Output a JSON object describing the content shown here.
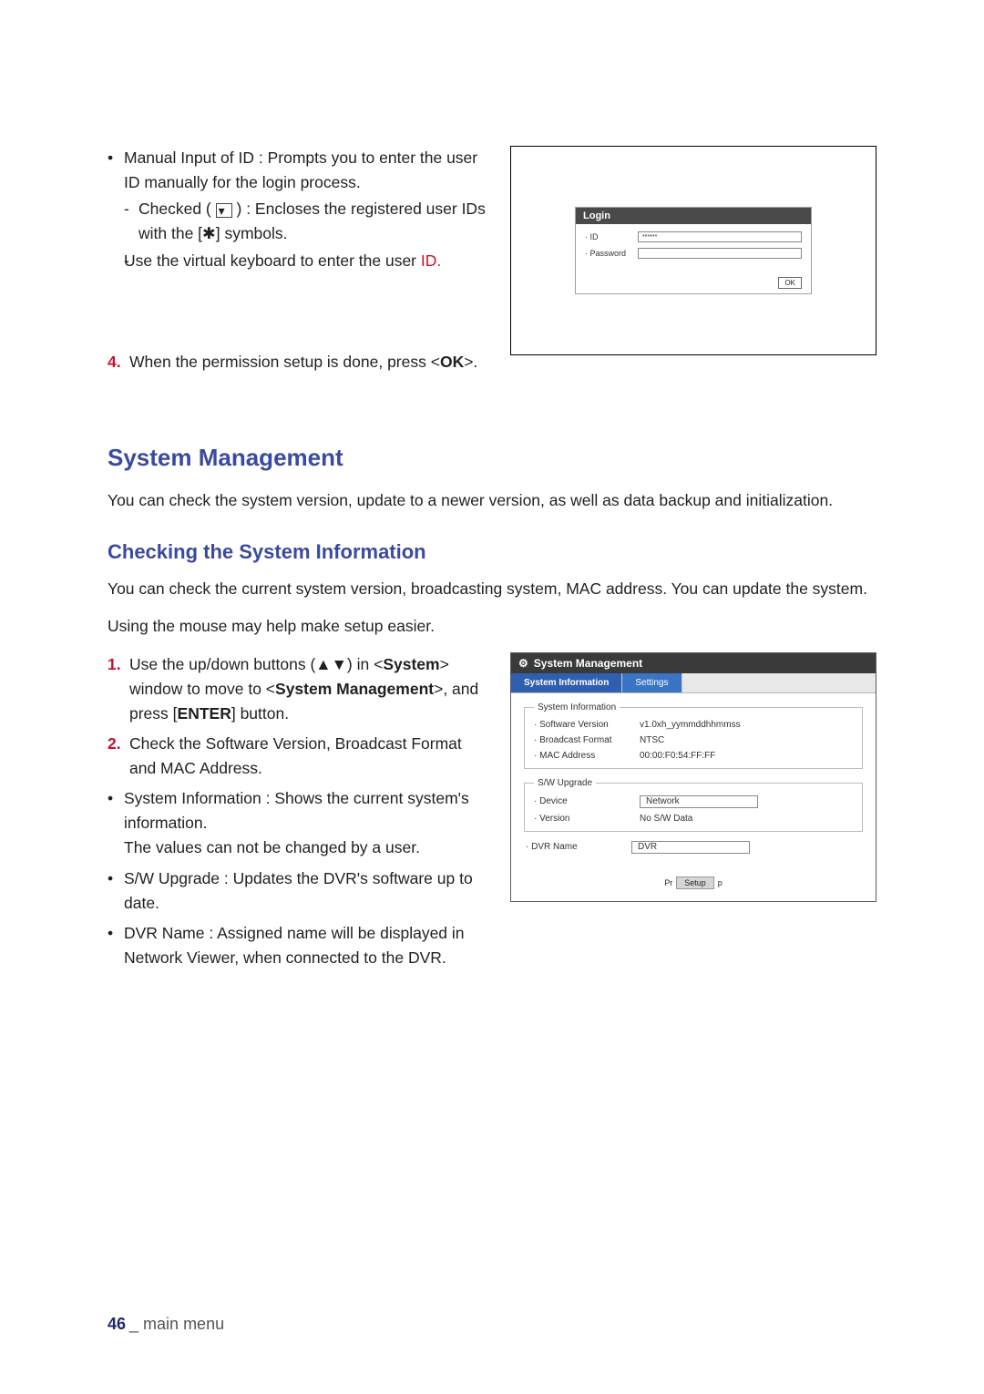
{
  "top": {
    "bullets": [
      {
        "text_a": "Manual Input of ID : Prompts you to enter the user ID manually for the login process.",
        "sub": [
          {
            "prefix": "Checked (",
            "suffix": ") : Encloses the registered user IDs with the [",
            "sym": "✱",
            "suffix2": "] symbols."
          },
          {
            "plain_a": "Use the virtual keyboard to enter the user ",
            "plain_red": "ID.",
            "no_dash": true
          }
        ]
      }
    ],
    "step4_num": "4.",
    "step4_a": "When the permission setup is done, press <",
    "step4_ok": "OK",
    "step4_b": ">.",
    "login": {
      "title": "Login",
      "id_label": "· ID",
      "id_value": "******",
      "pw_label": "· Password",
      "pw_value": "",
      "btn": "OK"
    }
  },
  "sm": {
    "h2": "System Management",
    "p1": "You can check the system version, update to a newer version, as well as data backup and initialization.",
    "h3": "Checking the System Information",
    "p2": "You can check the current system version, broadcasting system, MAC address. You can update the system.",
    "tip": "Using the mouse may help make setup easier.",
    "step1_num": "1.",
    "step1_a": "Use the up/down buttons (▲▼) in <",
    "step1_sys": "System",
    "step1_b": "> window to move to <",
    "step1_mgmt": "System Management",
    "step1_c": ">, and press [",
    "step1_enter": "ENTER",
    "step1_d": "] button.",
    "step2_num": "2.",
    "step2": "Check the Software Version, Broadcast Format and MAC Address.",
    "b1": "System Information : Shows the current system's information.",
    "b1b": "The values can not be changed by a user.",
    "b2": "S/W Upgrade : Updates the DVR's software up to date.",
    "b3": "DVR Name : Assigned name will be displayed in Network Viewer, when connected to the DVR."
  },
  "panel": {
    "title": "System Management",
    "tab1": "System Information",
    "tab2": "Settings",
    "grp1": "System Information",
    "sw_label": "· Software Version",
    "sw_value": "v1.0xh_yymmddhhmmss",
    "bf_label": "· Broadcast Format",
    "bf_value": "NTSC",
    "mac_label": "· MAC Address",
    "mac_value": "00:00:F0:54:FF:FF",
    "grp2": "S/W Upgrade",
    "dev_label": "· Device",
    "dev_value": "Network",
    "ver_label": "· Version",
    "ver_value": "No S/W Data",
    "dvrn_label": "· DVR Name",
    "dvrn_value": "DVR",
    "foot_prev": "Pr",
    "foot_key": "Setup",
    "foot_next": "p"
  },
  "footer": {
    "page": "46",
    "sep": "_",
    "label": " main menu"
  }
}
